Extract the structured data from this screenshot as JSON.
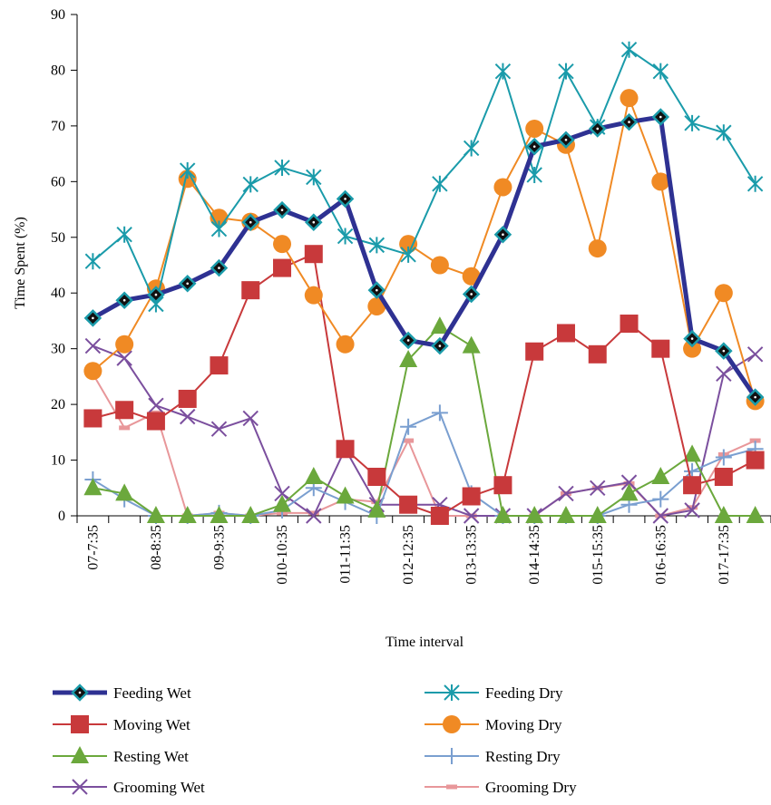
{
  "chart_data": {
    "type": "line",
    "xlabel": "Time interval",
    "ylabel": "Time Spent (%)",
    "ylim": [
      0,
      90
    ],
    "yticks": [
      0,
      10,
      20,
      30,
      40,
      50,
      60,
      70,
      80,
      90
    ],
    "grid": false,
    "legend_position": "bottom",
    "categories": [
      "07-7:35",
      "",
      "08-8:35",
      "",
      "09-9:35",
      "",
      "010-10:35",
      "",
      "011-11:35",
      "",
      "012-12:35",
      "",
      "013-13:35",
      "",
      "014-14:35",
      "",
      "015-15:35",
      "",
      "016-16:35",
      "",
      "017-17:35",
      ""
    ],
    "series": [
      {
        "name": "Feeding Wet",
        "color": "#2E3192",
        "marker": "diamond",
        "values": [
          35.5,
          38.7,
          39.7,
          41.7,
          44.5,
          52.7,
          54.9,
          52.7,
          56.9,
          40.5,
          31.5,
          30.5,
          39.8,
          50.5,
          66.3,
          67.5,
          69.5,
          70.7,
          71.6,
          31.8,
          29.6,
          21.3
        ]
      },
      {
        "name": "Feeding Dry",
        "color": "#1A9BAA",
        "marker": "asterisk",
        "values": [
          45.7,
          50.5,
          38.0,
          62.0,
          51.5,
          59.5,
          62.5,
          60.8,
          50.2,
          48.6,
          46.9,
          59.6,
          66.0,
          79.8,
          61.2,
          79.8,
          69.8,
          83.7,
          79.8,
          70.5,
          68.8,
          59.6
        ]
      },
      {
        "name": "Moving Wet",
        "color": "#C8393B",
        "marker": "square",
        "values": [
          17.5,
          19.0,
          17.0,
          21.0,
          27.0,
          40.5,
          44.5,
          47.0,
          12.0,
          7.0,
          2.0,
          0.0,
          3.5,
          5.5,
          29.5,
          32.8,
          29.0,
          34.5,
          30.0,
          5.5,
          7.0,
          10.0
        ]
      },
      {
        "name": "Moving Dry",
        "color": "#F08A24",
        "marker": "circle",
        "values": [
          26.0,
          30.8,
          40.8,
          60.5,
          53.5,
          52.8,
          48.8,
          39.6,
          30.8,
          37.6,
          48.8,
          45.0,
          43.0,
          59.0,
          69.5,
          66.6,
          48.0,
          75.0,
          60.0,
          30.0,
          40.0,
          20.6
        ]
      },
      {
        "name": "Resting Wet",
        "color": "#6BA83C",
        "marker": "triangle",
        "values": [
          5.0,
          4.0,
          0.0,
          0.0,
          0.0,
          0.0,
          2.0,
          7.0,
          3.5,
          1.0,
          28.0,
          34.0,
          30.5,
          0.0,
          0.0,
          0.0,
          0.0,
          4.0,
          7.0,
          11.0,
          0.0,
          0.0
        ]
      },
      {
        "name": "Resting Dry",
        "color": "#7A9FD0",
        "marker": "plus",
        "values": [
          6.5,
          3.0,
          0.0,
          0.0,
          0.5,
          0.0,
          1.0,
          5.0,
          2.5,
          0.0,
          16.0,
          18.5,
          4.0,
          0.0,
          0.0,
          0.0,
          0.0,
          2.0,
          3.0,
          8.0,
          10.5,
          12.0
        ]
      },
      {
        "name": "Grooming Wet",
        "color": "#7B4F9E",
        "marker": "x",
        "values": [
          30.5,
          28.3,
          19.8,
          17.8,
          15.6,
          17.5,
          4.0,
          0.0,
          12.0,
          2.0,
          2.0,
          2.0,
          0.0,
          0.0,
          0.0,
          4.0,
          5.0,
          6.0,
          0.0,
          1.0,
          25.5,
          29.0
        ]
      },
      {
        "name": "Grooming Dry",
        "color": "#E8979A",
        "marker": "dash",
        "values": [
          25.5,
          15.8,
          18.5,
          0.0,
          0.5,
          0.0,
          0.5,
          0.5,
          3.0,
          2.5,
          13.5,
          0.0,
          0.0,
          0.0,
          0.0,
          4.0,
          5.0,
          5.8,
          0.0,
          1.5,
          11.0,
          13.5
        ]
      }
    ]
  }
}
